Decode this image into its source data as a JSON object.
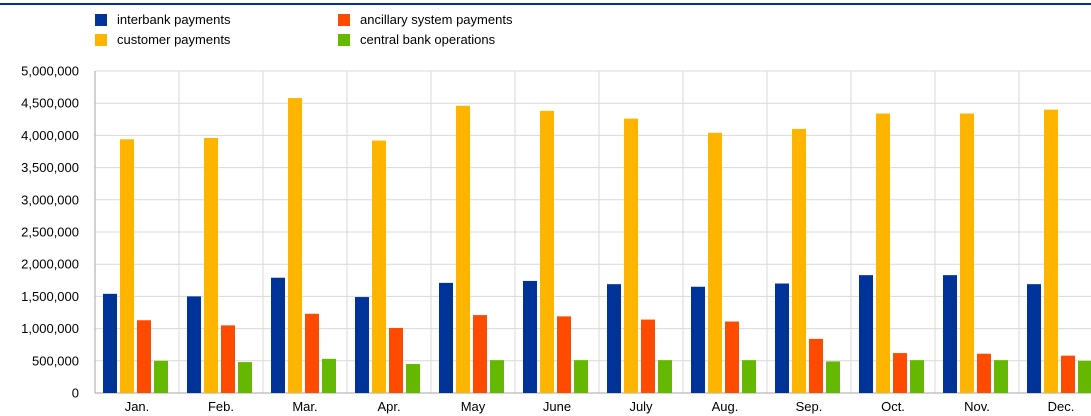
{
  "chart_data": {
    "type": "bar",
    "categories": [
      "Jan.",
      "Feb.",
      "Mar.",
      "Apr.",
      "May",
      "June",
      "July",
      "Aug.",
      "Sep.",
      "Oct.",
      "Nov.",
      "Dec."
    ],
    "series": [
      {
        "name": "interbank payments",
        "color": "#003399",
        "values": [
          1540000,
          1500000,
          1790000,
          1490000,
          1710000,
          1740000,
          1690000,
          1650000,
          1700000,
          1830000,
          1830000,
          1690000
        ]
      },
      {
        "name": "customer payments",
        "color": "#FFB400",
        "values": [
          3940000,
          3960000,
          4580000,
          3920000,
          4460000,
          4380000,
          4260000,
          4040000,
          4100000,
          4340000,
          4340000,
          4400000
        ]
      },
      {
        "name": "ancillary system payments",
        "color": "#FF4B00",
        "values": [
          1130000,
          1050000,
          1230000,
          1010000,
          1210000,
          1190000,
          1140000,
          1110000,
          840000,
          620000,
          610000,
          580000
        ]
      },
      {
        "name": "central bank operations",
        "color": "#65B800",
        "values": [
          500000,
          480000,
          530000,
          450000,
          510000,
          510000,
          510000,
          510000,
          490000,
          510000,
          510000,
          500000
        ]
      }
    ],
    "yticks": [
      "0",
      "500,000",
      "1,000,000",
      "1,500,000",
      "2,000,000",
      "2,500,000",
      "3,000,000",
      "3,500,000",
      "4,000,000",
      "4,500,000",
      "5,000,000"
    ],
    "ylim": [
      0,
      5000000
    ],
    "grid": true,
    "legend_position": "top-left",
    "legend_order": [
      "interbank payments",
      "ancillary system payments",
      "customer payments",
      "central bank operations"
    ]
  }
}
